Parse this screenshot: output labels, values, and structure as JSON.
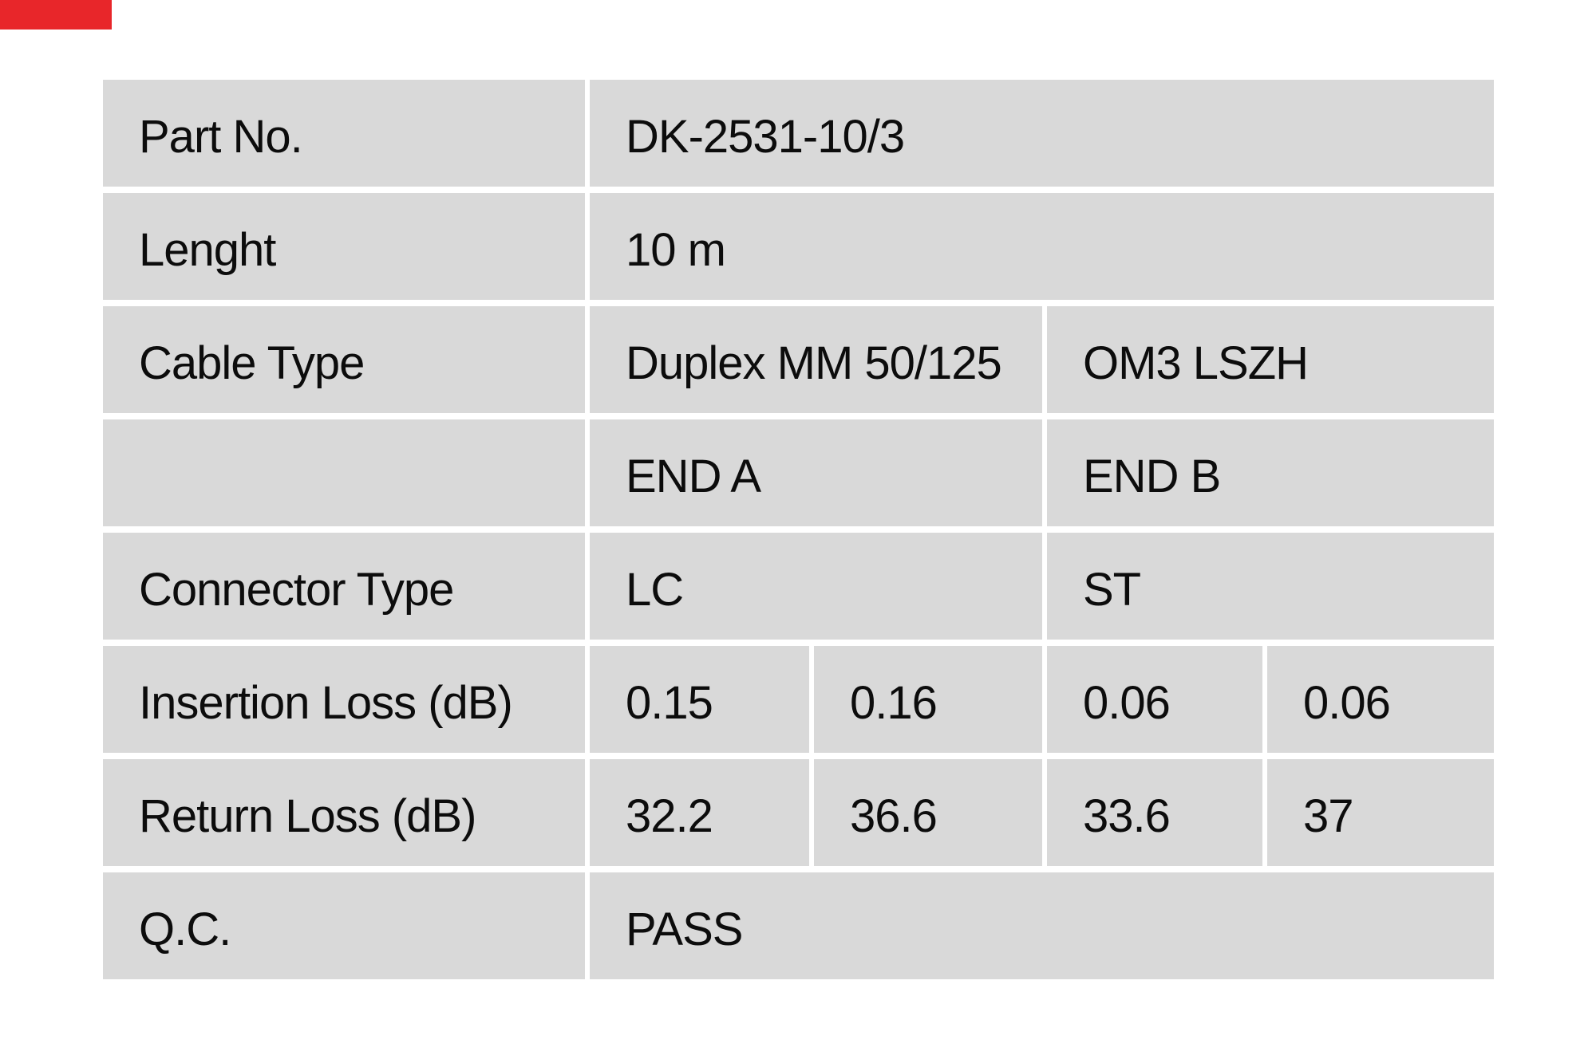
{
  "page": {
    "background_color": "#ffffff"
  },
  "corner_mark": {
    "color": "#e8262a"
  },
  "table": {
    "cell_background_color": "#d9d9d9",
    "text_color": "#0c0c0c",
    "rows": [
      {
        "label": "Part No.",
        "values": [
          "DK-2531-10/3"
        ]
      },
      {
        "label": "Lenght",
        "values": [
          "10 m"
        ]
      },
      {
        "label": "Cable Type",
        "values": [
          "Duplex MM 50/125",
          "OM3 LSZH"
        ]
      },
      {
        "label": "",
        "values": [
          "END A",
          "END B"
        ]
      },
      {
        "label": "Connector Type",
        "values": [
          "LC",
          "ST"
        ]
      },
      {
        "label": "Insertion Loss (dB)",
        "values": [
          "0.15",
          "0.16",
          "0.06",
          "0.06"
        ]
      },
      {
        "label": "Return Loss (dB)",
        "values": [
          "32.2",
          "36.6",
          "33.6",
          "37"
        ]
      },
      {
        "label": "Q.C.",
        "values": [
          "PASS"
        ]
      }
    ]
  }
}
